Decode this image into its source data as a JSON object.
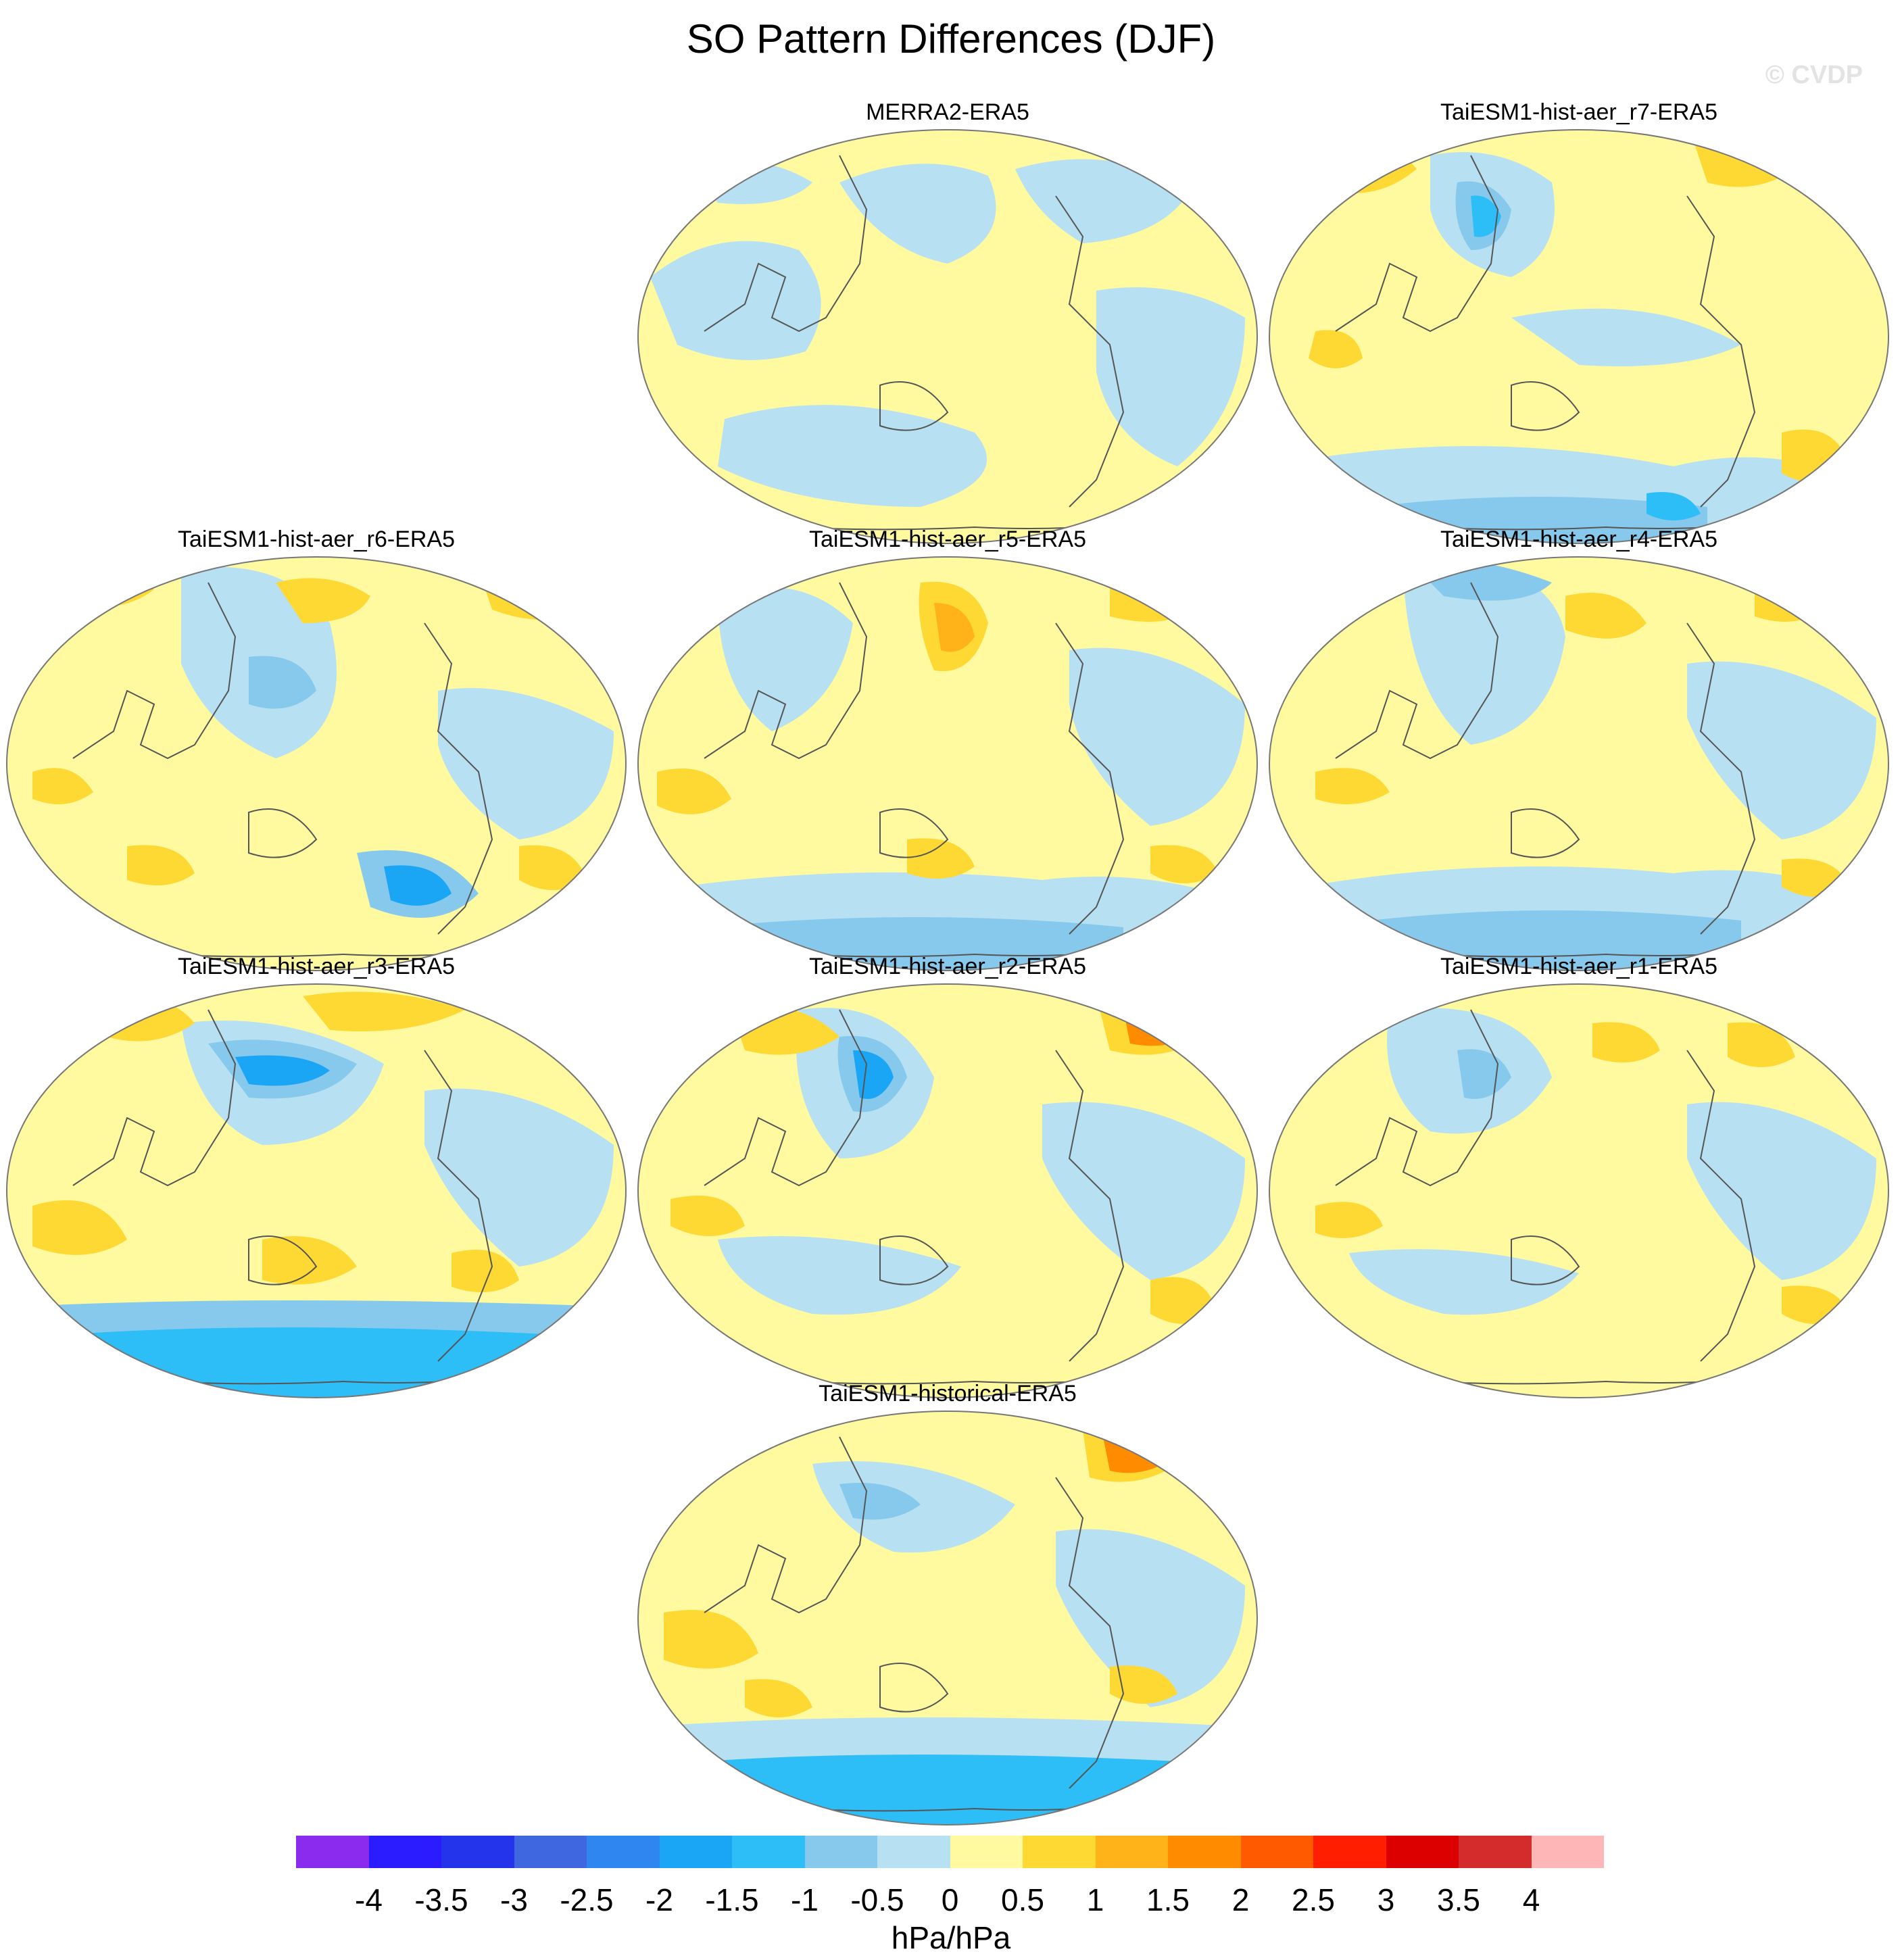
{
  "title": "SO Pattern Differences (DJF)",
  "watermark": "© CVDP",
  "units": "hPa/hPa",
  "colors": {
    "land_outline": "#555555",
    "map_border": "#777777"
  },
  "panels": [
    {
      "id": "merra2",
      "title": "MERRA2-ERA5",
      "base": "yellow"
    },
    {
      "id": "r7",
      "title": "TaiESM1-hist-aer_r7-ERA5",
      "base": "yellow"
    },
    {
      "id": "r6",
      "title": "TaiESM1-hist-aer_r6-ERA5",
      "base": "yellow"
    },
    {
      "id": "r5",
      "title": "TaiESM1-hist-aer_r5-ERA5",
      "base": "yellow"
    },
    {
      "id": "r4",
      "title": "TaiESM1-hist-aer_r4-ERA5",
      "base": "yellow"
    },
    {
      "id": "r3",
      "title": "TaiESM1-hist-aer_r3-ERA5",
      "base": "yellow"
    },
    {
      "id": "r2",
      "title": "TaiESM1-hist-aer_r2-ERA5",
      "base": "yellow"
    },
    {
      "id": "r1",
      "title": "TaiESM1-hist-aer_r1-ERA5",
      "base": "yellow"
    },
    {
      "id": "historical",
      "title": "TaiESM1-historical-ERA5",
      "base": "yellow"
    }
  ],
  "colorbar": {
    "colors": [
      "#8B2BEE",
      "#2B1BFF",
      "#2434EA",
      "#3E67E0",
      "#2F86F0",
      "#1AA6F5",
      "#2DBEF7",
      "#86C9EC",
      "#B7E0F2",
      "#FFFAA0",
      "#FFD933",
      "#FFB319",
      "#FF8B00",
      "#FF5A00",
      "#FF1E00",
      "#DC0000",
      "#D42C2C",
      "#FFB6B6"
    ],
    "labels": [
      "-4",
      "-3.5",
      "-3",
      "-2.5",
      "-2",
      "-1.5",
      "-1",
      "-0.5",
      "0",
      "0.5",
      "1",
      "1.5",
      "2",
      "2.5",
      "3",
      "3.5",
      "4"
    ]
  }
}
